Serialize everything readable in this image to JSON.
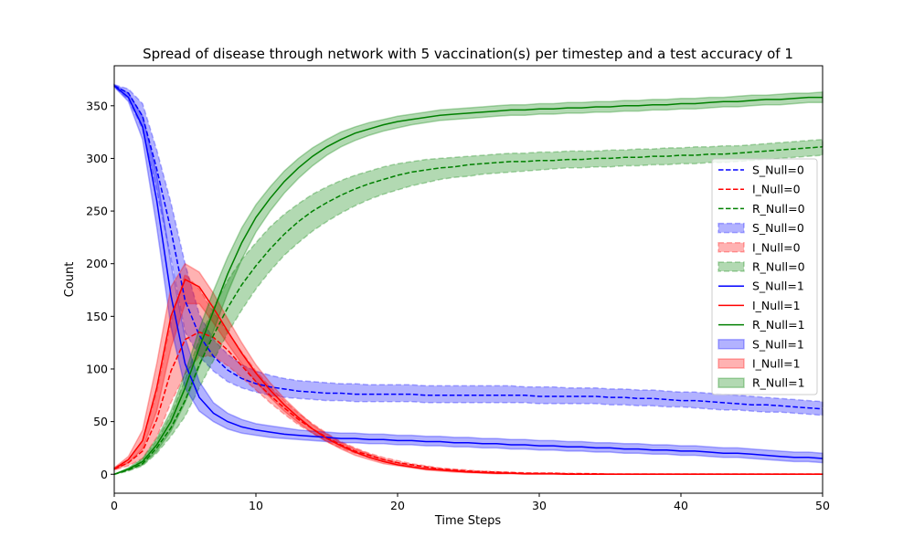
{
  "chart_data": {
    "type": "line",
    "title": "Spread of disease through network with 5 vaccination(s) per timestep and a test accuracy of 1",
    "xlabel": "Time Steps",
    "ylabel": "Count",
    "xlim": [
      0,
      50
    ],
    "ylim": [
      -18,
      388
    ],
    "xticks": [
      0,
      10,
      20,
      30,
      40,
      50
    ],
    "yticks": [
      0,
      50,
      100,
      150,
      200,
      250,
      300,
      350
    ],
    "grid": false,
    "legend_position": "right",
    "x": [
      0,
      1,
      2,
      3,
      4,
      5,
      6,
      7,
      8,
      9,
      10,
      11,
      12,
      13,
      14,
      15,
      16,
      17,
      18,
      19,
      20,
      21,
      22,
      23,
      24,
      25,
      26,
      27,
      28,
      29,
      30,
      31,
      32,
      33,
      34,
      35,
      36,
      37,
      38,
      39,
      40,
      41,
      42,
      43,
      44,
      45,
      46,
      47,
      48,
      49,
      50
    ],
    "series": [
      {
        "name": "S_Null=0",
        "color": "#0000ff",
        "style": "dashed",
        "values": [
          369,
          362,
          340,
          290,
          232,
          165,
          132,
          112,
          99,
          91,
          86,
          83,
          81,
          79,
          78,
          77,
          77,
          76,
          76,
          76,
          76,
          76,
          75,
          75,
          75,
          75,
          75,
          75,
          75,
          75,
          74,
          74,
          74,
          74,
          74,
          73,
          73,
          72,
          72,
          71,
          70,
          70,
          69,
          68,
          67,
          66,
          66,
          65,
          64,
          63,
          62
        ],
        "upper": [
          370,
          366,
          352,
          308,
          258,
          200,
          152,
          128,
          114,
          104,
          98,
          94,
          91,
          89,
          88,
          87,
          86,
          86,
          85,
          85,
          85,
          85,
          84,
          84,
          84,
          84,
          84,
          84,
          84,
          83,
          83,
          83,
          82,
          82,
          82,
          81,
          81,
          80,
          80,
          79,
          78,
          78,
          77,
          76,
          75,
          74,
          73,
          72,
          71,
          70,
          69
        ],
        "lower": [
          368,
          356,
          328,
          270,
          205,
          135,
          112,
          98,
          88,
          82,
          78,
          75,
          73,
          72,
          71,
          70,
          70,
          69,
          69,
          69,
          69,
          69,
          68,
          68,
          68,
          68,
          68,
          68,
          68,
          68,
          67,
          67,
          67,
          67,
          67,
          66,
          66,
          65,
          65,
          64,
          64,
          63,
          62,
          61,
          61,
          60,
          59,
          59,
          58,
          57,
          56
        ]
      },
      {
        "name": "I_Null=0",
        "color": "#ff0000",
        "style": "dashed",
        "values": [
          5,
          11,
          22,
          52,
          98,
          128,
          135,
          130,
          118,
          103,
          88,
          75,
          63,
          52,
          43,
          35,
          28,
          22,
          18,
          14,
          11,
          9,
          7,
          5,
          4,
          3,
          2.5,
          2,
          1.5,
          1,
          1,
          1,
          0.5,
          0.5,
          0.5,
          0,
          0,
          0,
          0,
          0,
          0,
          0,
          0,
          0,
          0,
          0,
          0,
          0,
          0,
          0,
          0
        ],
        "upper": [
          6,
          14,
          32,
          78,
          145,
          190,
          176,
          154,
          135,
          116,
          98,
          83,
          70,
          58,
          48,
          39,
          31,
          25,
          20,
          16,
          13,
          10,
          8,
          6,
          5,
          4,
          3,
          2.5,
          2,
          1.5,
          1,
          1,
          1,
          1,
          0.5,
          0.5,
          0.5,
          0.5,
          0.5,
          0.5,
          0.5,
          0.5,
          0.5,
          0.5,
          0.5,
          0.5,
          0.5,
          0.5,
          0.5,
          0.5,
          0.5
        ],
        "lower": [
          4,
          8,
          15,
          35,
          68,
          95,
          112,
          112,
          103,
          92,
          80,
          68,
          57,
          47,
          39,
          31,
          25,
          20,
          16,
          12,
          10,
          8,
          6,
          4,
          3,
          2,
          1.5,
          1,
          1,
          0.5,
          0.5,
          0.5,
          0,
          0,
          0,
          0,
          0,
          0,
          0,
          0,
          0,
          0,
          0,
          0,
          0,
          0,
          0,
          0,
          0,
          0,
          0
        ]
      },
      {
        "name": "R_Null=0",
        "color": "#008000",
        "style": "dashed",
        "values": [
          0,
          4,
          10,
          25,
          44,
          70,
          104,
          132,
          158,
          180,
          198,
          214,
          228,
          240,
          250,
          258,
          265,
          271,
          276,
          280,
          284,
          287,
          289,
          291,
          292,
          294,
          295,
          296,
          297,
          297,
          298,
          298,
          299,
          299,
          300,
          300,
          301,
          301,
          302,
          302,
          303,
          303,
          304,
          304,
          305,
          306,
          307,
          308,
          309,
          310,
          311
        ],
        "upper": [
          0,
          5,
          14,
          32,
          56,
          90,
          128,
          158,
          184,
          204,
          220,
          235,
          247,
          257,
          266,
          273,
          279,
          284,
          288,
          292,
          295,
          297,
          299,
          300,
          301,
          302,
          303,
          304,
          305,
          305,
          306,
          306,
          307,
          307,
          307,
          308,
          308,
          309,
          309,
          310,
          310,
          311,
          311,
          312,
          312,
          313,
          314,
          315,
          316,
          317,
          318
        ],
        "lower": [
          0,
          3,
          8,
          20,
          36,
          55,
          82,
          108,
          134,
          156,
          176,
          193,
          208,
          220,
          231,
          240,
          248,
          255,
          261,
          266,
          270,
          274,
          277,
          280,
          282,
          283,
          285,
          286,
          287,
          288,
          289,
          290,
          291,
          291,
          292,
          292,
          293,
          293,
          294,
          294,
          295,
          295,
          296,
          296,
          297,
          298,
          299,
          300,
          301,
          302,
          303
        ]
      },
      {
        "name": "S_Null=1",
        "color": "#0000ff",
        "style": "solid",
        "values": [
          369,
          358,
          330,
          260,
          170,
          105,
          73,
          58,
          50,
          45,
          42,
          40,
          38,
          37,
          36,
          35,
          34,
          34,
          33,
          33,
          32,
          32,
          31,
          31,
          30,
          30,
          29,
          29,
          28,
          28,
          27,
          27,
          26,
          26,
          25,
          25,
          24,
          24,
          23,
          23,
          22,
          22,
          21,
          20,
          20,
          19,
          18,
          17,
          16,
          16,
          15
        ],
        "upper": [
          370,
          362,
          340,
          285,
          200,
          130,
          88,
          68,
          58,
          52,
          48,
          46,
          44,
          42,
          41,
          40,
          39,
          39,
          38,
          38,
          37,
          37,
          36,
          36,
          35,
          35,
          34,
          34,
          33,
          33,
          32,
          32,
          31,
          31,
          30,
          30,
          29,
          29,
          28,
          28,
          27,
          27,
          26,
          25,
          25,
          24,
          23,
          22,
          21,
          21,
          20
        ],
        "lower": [
          368,
          354,
          318,
          235,
          140,
          82,
          60,
          50,
          43,
          39,
          37,
          35,
          34,
          33,
          32,
          31,
          30,
          30,
          29,
          29,
          28,
          28,
          27,
          27,
          26,
          26,
          25,
          25,
          24,
          24,
          23,
          23,
          22,
          22,
          21,
          21,
          20,
          20,
          19,
          19,
          18,
          18,
          17,
          16,
          16,
          15,
          14,
          13,
          12,
          12,
          11
        ]
      },
      {
        "name": "I_Null=1",
        "color": "#ff0000",
        "style": "solid",
        "values": [
          5,
          14,
          32,
          82,
          150,
          185,
          178,
          158,
          136,
          115,
          96,
          80,
          66,
          54,
          43,
          34,
          27,
          21,
          16,
          12,
          9,
          7,
          5,
          4,
          3,
          2,
          1.5,
          1,
          1,
          0.5,
          0.5,
          0.5,
          0,
          0,
          0,
          0,
          0,
          0,
          0,
          0,
          0,
          0,
          0,
          0,
          0,
          0,
          0,
          0,
          0,
          0,
          0
        ],
        "upper": [
          6,
          17,
          42,
          105,
          178,
          200,
          192,
          172,
          148,
          125,
          104,
          87,
          72,
          59,
          47,
          38,
          30,
          24,
          19,
          14,
          11,
          8,
          6,
          5,
          4,
          3,
          2,
          1.5,
          1,
          1,
          1,
          0.5,
          0.5,
          0.5,
          0.5,
          0.5,
          0.5,
          0.5,
          0.5,
          0.5,
          0.5,
          0.5,
          0.5,
          0.5,
          0.5,
          0.5,
          0.5,
          0.5,
          0.5,
          0.5,
          0.5
        ],
        "lower": [
          4,
          11,
          24,
          60,
          120,
          162,
          162,
          144,
          124,
          105,
          88,
          73,
          60,
          49,
          39,
          31,
          24,
          18,
          14,
          10,
          8,
          6,
          4,
          3,
          2,
          1.5,
          1,
          0.5,
          0.5,
          0,
          0,
          0,
          0,
          0,
          0,
          0,
          0,
          0,
          0,
          0,
          0,
          0,
          0,
          0,
          0,
          0,
          0,
          0,
          0,
          0,
          0
        ]
      },
      {
        "name": "R_Null=1",
        "color": "#008000",
        "style": "solid",
        "values": [
          0,
          5,
          12,
          28,
          50,
          82,
          120,
          155,
          190,
          220,
          244,
          262,
          278,
          291,
          302,
          311,
          318,
          324,
          328,
          332,
          335,
          337,
          339,
          341,
          342,
          343,
          344,
          345,
          346,
          346,
          347,
          347,
          348,
          348,
          349,
          349,
          350,
          350,
          351,
          351,
          352,
          352,
          353,
          354,
          354,
          355,
          356,
          356,
          357,
          358,
          358
        ],
        "upper": [
          0,
          6,
          15,
          34,
          60,
          96,
          138,
          174,
          206,
          234,
          256,
          273,
          288,
          300,
          310,
          318,
          325,
          330,
          334,
          337,
          340,
          342,
          344,
          346,
          347,
          348,
          349,
          350,
          351,
          351,
          352,
          352,
          353,
          353,
          354,
          354,
          355,
          355,
          356,
          356,
          357,
          357,
          358,
          358,
          359,
          360,
          360,
          361,
          362,
          362,
          363
        ],
        "lower": [
          0,
          4,
          9,
          22,
          41,
          68,
          102,
          136,
          172,
          204,
          230,
          250,
          267,
          281,
          293,
          303,
          311,
          317,
          322,
          326,
          329,
          332,
          334,
          336,
          337,
          338,
          339,
          340,
          341,
          341,
          342,
          342,
          343,
          343,
          344,
          344,
          345,
          345,
          346,
          346,
          347,
          347,
          348,
          349,
          349,
          350,
          351,
          351,
          352,
          353,
          353
        ]
      }
    ],
    "legend": [
      {
        "label": "S_Null=0",
        "kind": "line",
        "color": "#0000ff",
        "style": "dashed"
      },
      {
        "label": "I_Null=0",
        "kind": "line",
        "color": "#ff0000",
        "style": "dashed"
      },
      {
        "label": "R_Null=0",
        "kind": "line",
        "color": "#008000",
        "style": "dashed"
      },
      {
        "label": "S_Null=0",
        "kind": "band",
        "color": "#0000ff",
        "style": "dashed"
      },
      {
        "label": "I_Null=0",
        "kind": "band",
        "color": "#ff0000",
        "style": "dashed"
      },
      {
        "label": "R_Null=0",
        "kind": "band",
        "color": "#008000",
        "style": "dashed"
      },
      {
        "label": "S_Null=1",
        "kind": "line",
        "color": "#0000ff",
        "style": "solid"
      },
      {
        "label": "I_Null=1",
        "kind": "line",
        "color": "#ff0000",
        "style": "solid"
      },
      {
        "label": "R_Null=1",
        "kind": "line",
        "color": "#008000",
        "style": "solid"
      },
      {
        "label": "S_Null=1",
        "kind": "band",
        "color": "#0000ff",
        "style": "solid"
      },
      {
        "label": "I_Null=1",
        "kind": "band",
        "color": "#ff0000",
        "style": "solid"
      },
      {
        "label": "R_Null=1",
        "kind": "band",
        "color": "#008000",
        "style": "solid"
      }
    ]
  }
}
